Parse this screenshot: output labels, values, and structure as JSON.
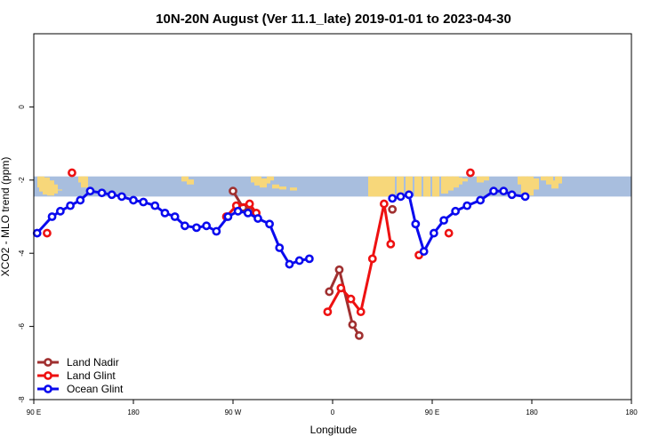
{
  "chart_data": {
    "type": "line",
    "title": "10N-20N August (Ver 11.1_late)   2019-01-01 to 2023-04-30",
    "xlabel": "Longitude",
    "ylabel": "XCO2 - MLO trend (ppm)",
    "xlim": [
      -180,
      180
    ],
    "ylim": [
      -8,
      2
    ],
    "xticks": [
      {
        "value": -180,
        "label": "90 E"
      },
      {
        "value": -120,
        "label": "180"
      },
      {
        "value": -60,
        "label": "90 W"
      },
      {
        "value": 0,
        "label": "0"
      },
      {
        "value": 60,
        "label": "90 E"
      },
      {
        "value": 120,
        "label": "180"
      }
    ],
    "yticks": [
      {
        "value": 0,
        "label": "0"
      },
      {
        "value": -2,
        "label": "-2"
      },
      {
        "value": -4,
        "label": "-4"
      },
      {
        "value": -6,
        "label": "-6"
      },
      {
        "value": -8,
        "label": "-8"
      }
    ],
    "map_band": {
      "ymin": -2.45,
      "ymax": -1.9,
      "ocean_color": "#a8bede",
      "land_color": "#f7d77a"
    },
    "grid": false,
    "legend_position": "bottom-left",
    "series": [
      {
        "name": "Land Nadir",
        "color": "#a03030",
        "segments": [
          [
            [
              -60,
              -2.3
            ],
            [
              -54,
              -2.75
            ],
            [
              -50,
              -2.85
            ]
          ],
          [
            [
              -2,
              -5.05
            ],
            [
              4,
              -4.45
            ],
            [
              12,
              -5.95
            ],
            [
              16,
              -6.25
            ]
          ],
          [
            [
              36,
              -2.8
            ]
          ]
        ]
      },
      {
        "name": "Land Glint",
        "color": "#ee1111",
        "segments": [
          [
            [
              -172,
              -3.45
            ]
          ],
          [
            [
              -157,
              -1.8
            ]
          ],
          [
            [
              -64,
              -3.0
            ],
            [
              -58,
              -2.7
            ],
            [
              -50,
              -2.65
            ],
            [
              -46,
              -2.9
            ]
          ],
          [
            [
              -3,
              -5.6
            ],
            [
              5,
              -4.95
            ],
            [
              11,
              -5.25
            ],
            [
              17,
              -5.6
            ],
            [
              24,
              -4.15
            ],
            [
              31,
              -2.65
            ],
            [
              35,
              -3.75
            ]
          ],
          [
            [
              52,
              -4.05
            ]
          ],
          [
            [
              70,
              -3.45
            ]
          ],
          [
            [
              83,
              -1.8
            ]
          ]
        ]
      },
      {
        "name": "Ocean Glint",
        "color": "#0a0aee",
        "segments": [
          [
            [
              -178,
              -3.45
            ],
            [
              -169,
              -3.0
            ],
            [
              -164,
              -2.85
            ],
            [
              -158,
              -2.7
            ],
            [
              -152,
              -2.55
            ],
            [
              -146,
              -2.3
            ],
            [
              -139,
              -2.35
            ],
            [
              -133,
              -2.4
            ],
            [
              -127,
              -2.45
            ],
            [
              -120,
              -2.55
            ],
            [
              -114,
              -2.6
            ],
            [
              -107,
              -2.7
            ],
            [
              -101,
              -2.9
            ],
            [
              -95,
              -3.0
            ],
            [
              -89,
              -3.25
            ],
            [
              -82,
              -3.3
            ],
            [
              -76,
              -3.25
            ],
            [
              -70,
              -3.4
            ],
            [
              -63,
              -3.0
            ],
            [
              -57,
              -2.85
            ],
            [
              -51,
              -2.9
            ],
            [
              -45,
              -3.05
            ],
            [
              -38,
              -3.2
            ],
            [
              -32,
              -3.85
            ],
            [
              -26,
              -4.3
            ],
            [
              -20,
              -4.2
            ],
            [
              -14,
              -4.15
            ]
          ],
          [
            [
              36,
              -2.5
            ],
            [
              41,
              -2.45
            ],
            [
              46,
              -2.4
            ],
            [
              50,
              -3.2
            ],
            [
              55,
              -3.95
            ],
            [
              61,
              -3.45
            ],
            [
              67,
              -3.1
            ],
            [
              74,
              -2.85
            ],
            [
              81,
              -2.7
            ],
            [
              89,
              -2.55
            ],
            [
              97,
              -2.3
            ],
            [
              103,
              -2.3
            ],
            [
              108,
              -2.4
            ],
            [
              116,
              -2.45
            ]
          ]
        ]
      }
    ]
  }
}
